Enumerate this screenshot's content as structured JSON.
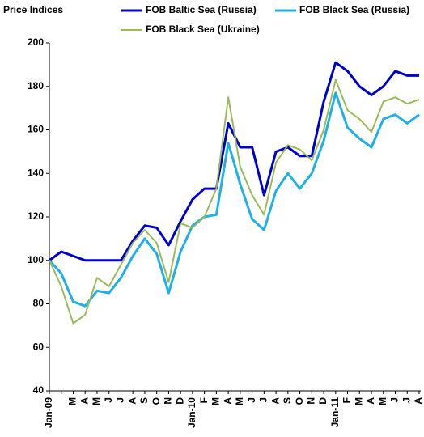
{
  "chart_data": {
    "type": "line",
    "title": "Price Indices",
    "categories": [
      "Jan-09",
      null,
      "M",
      "A",
      "M",
      "J",
      "J",
      "A",
      "S",
      "O",
      "N",
      "D",
      "Jan-10",
      "F",
      "M",
      "A",
      "M",
      "J",
      "J",
      "A",
      "S",
      "O",
      "N",
      "D",
      "Jan-11",
      "F",
      "M",
      "A",
      "M",
      "J",
      "J",
      "A"
    ],
    "series": [
      {
        "name": "FOB Baltic Sea (Russia)",
        "color": "#0000cc",
        "values": [
          100,
          104,
          102,
          100,
          100,
          100,
          100,
          109,
          116,
          115,
          107,
          118,
          128,
          133,
          133,
          163,
          152,
          152,
          130,
          150,
          152,
          148,
          148,
          173,
          191,
          187,
          180,
          176,
          180,
          187,
          185,
          185
        ]
      },
      {
        "name": "FOB Black Sea (Russia)",
        "color": "#1fb0e8",
        "values": [
          100,
          94,
          81,
          79,
          86,
          85,
          92,
          102,
          110,
          103,
          85,
          104,
          116,
          120,
          121,
          154,
          135,
          119,
          114,
          132,
          140,
          133,
          140,
          155,
          177,
          161,
          156,
          152,
          165,
          167,
          163,
          167
        ]
      },
      {
        "name": "FOB Black Sea (Ukraine)",
        "color": "#9bbb59",
        "values": [
          100,
          88,
          71,
          75,
          92,
          88,
          98,
          108,
          114,
          108,
          90,
          117,
          115,
          120,
          133,
          175,
          143,
          130,
          121,
          145,
          153,
          151,
          146,
          160,
          183,
          169,
          165,
          159,
          173,
          175,
          172,
          174
        ]
      }
    ],
    "ylim": [
      40,
      200
    ],
    "yticks": [
      40,
      60,
      80,
      100,
      120,
      140,
      160,
      180,
      200
    ],
    "grid": false
  }
}
